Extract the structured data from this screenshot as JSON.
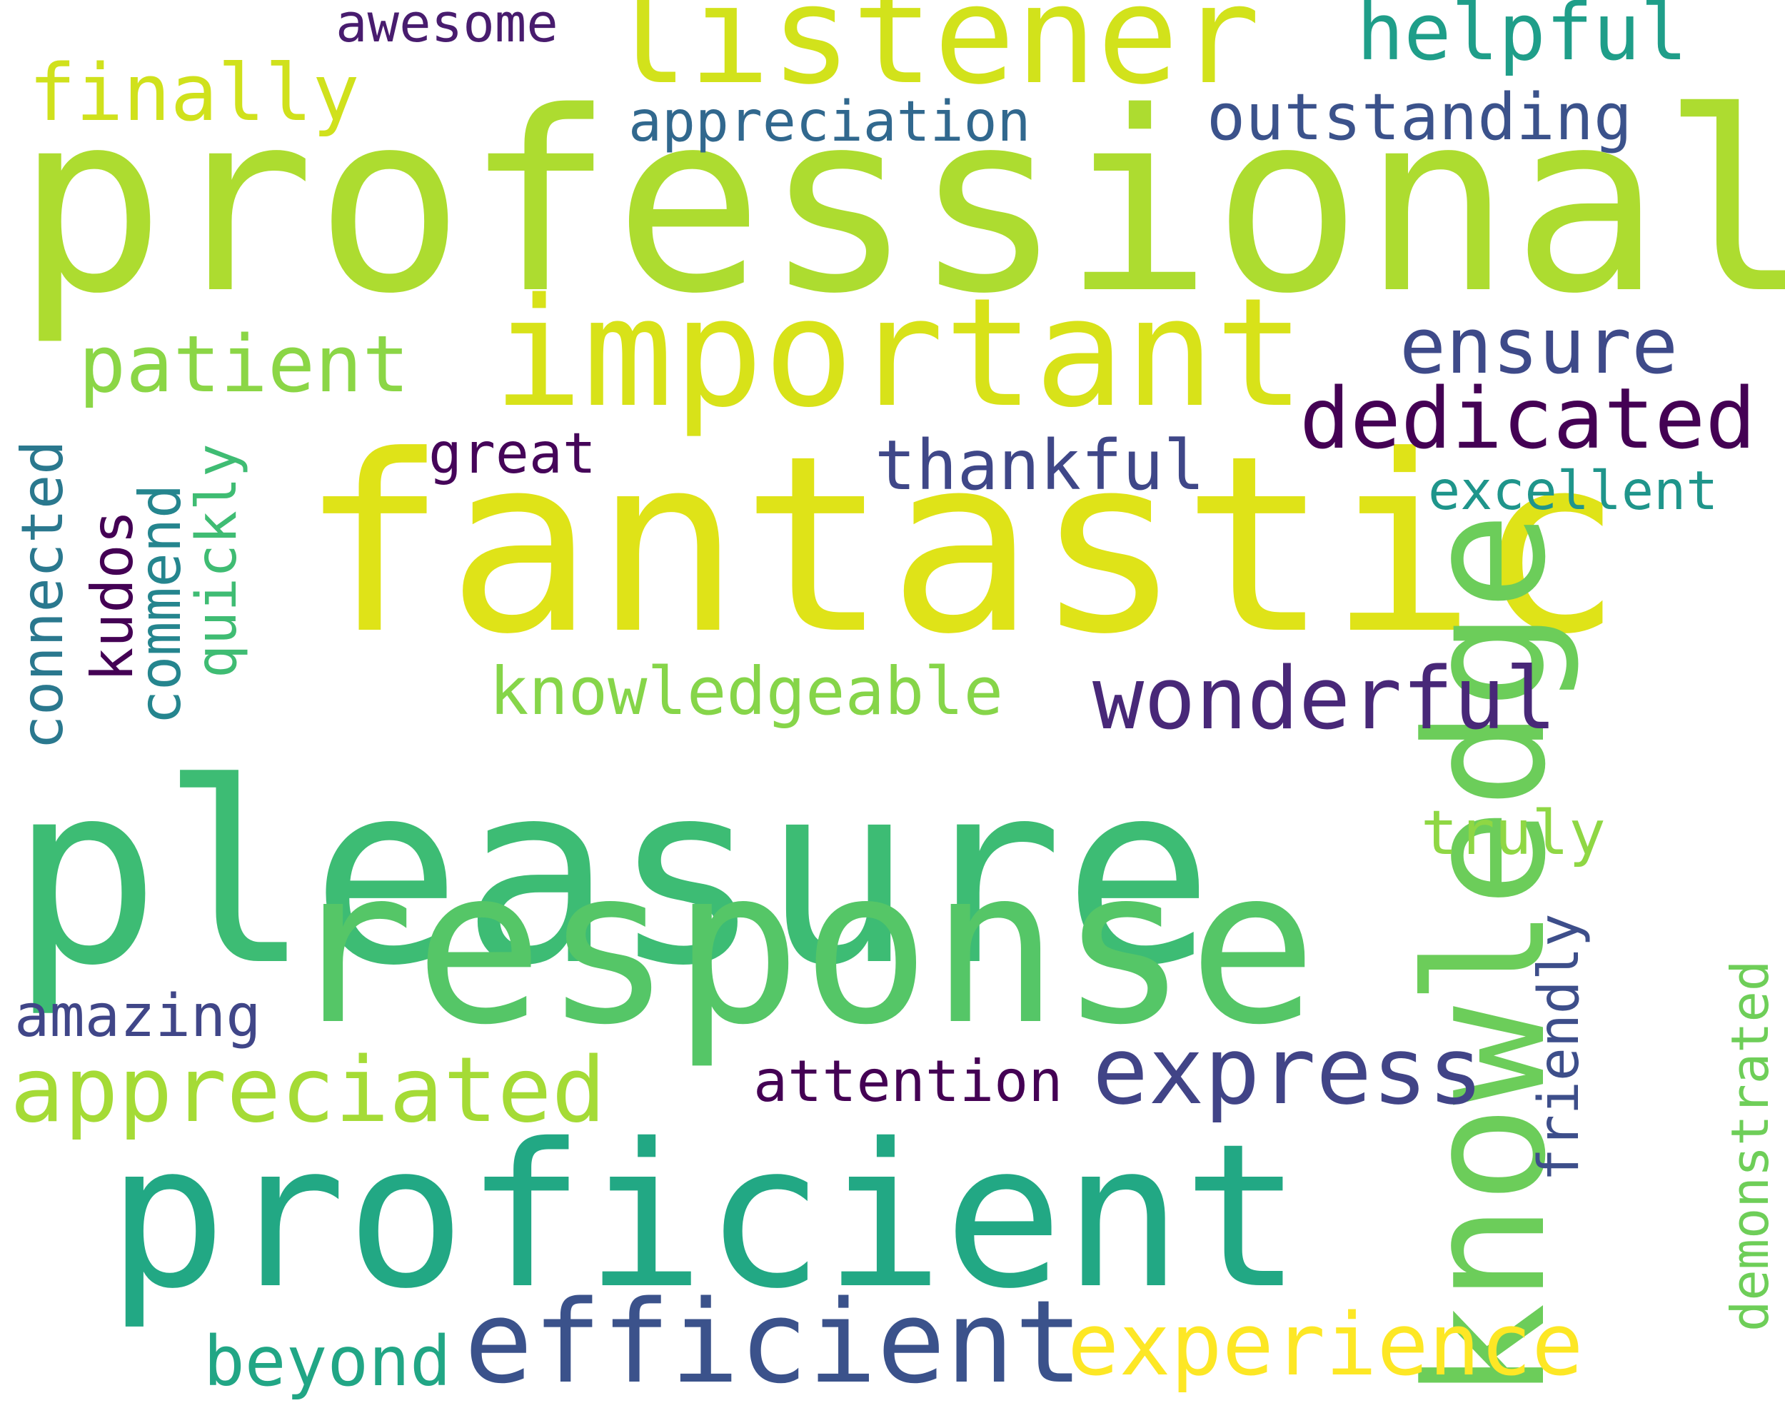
{
  "words": [
    {
      "text": "professional",
      "color": "#addc30",
      "vertical": false
    },
    {
      "text": "fantastic",
      "color": "#dfe318",
      "vertical": false
    },
    {
      "text": "pleasure",
      "color": "#3dbc74",
      "vertical": false
    },
    {
      "text": "response",
      "color": "#55c667",
      "vertical": false
    },
    {
      "text": "proficient",
      "color": "#22a884",
      "vertical": false
    },
    {
      "text": "knowledge",
      "color": "#6ccd5a",
      "vertical": true
    },
    {
      "text": "important",
      "color": "#d8e219",
      "vertical": false
    },
    {
      "text": "listener",
      "color": "#d2e21b",
      "vertical": false
    },
    {
      "text": "efficient",
      "color": "#3b528b",
      "vertical": false
    },
    {
      "text": "express",
      "color": "#414487",
      "vertical": false
    },
    {
      "text": "experience",
      "color": "#fde725",
      "vertical": false
    },
    {
      "text": "appreciated",
      "color": "#a5db36",
      "vertical": false
    },
    {
      "text": "wonderful",
      "color": "#482878",
      "vertical": false
    },
    {
      "text": "dedicated",
      "color": "#440154",
      "vertical": false
    },
    {
      "text": "ensure",
      "color": "#3e4a89",
      "vertical": false
    },
    {
      "text": "helpful",
      "color": "#1f9e89",
      "vertical": false
    },
    {
      "text": "finally",
      "color": "#d0e11c",
      "vertical": false
    },
    {
      "text": "patient",
      "color": "#8bd646",
      "vertical": false
    },
    {
      "text": "knowledgeable",
      "color": "#86d549",
      "vertical": false
    },
    {
      "text": "thankful",
      "color": "#3f4788",
      "vertical": false
    },
    {
      "text": "outstanding",
      "color": "#3b528b",
      "vertical": false
    },
    {
      "text": "appreciation",
      "color": "#31688e",
      "vertical": false
    },
    {
      "text": "excellent",
      "color": "#1f958b",
      "vertical": false
    },
    {
      "text": "beyond",
      "color": "#21a685",
      "vertical": false
    },
    {
      "text": "attention",
      "color": "#440154",
      "vertical": false
    },
    {
      "text": "amazing",
      "color": "#404688",
      "vertical": false
    },
    {
      "text": "truly",
      "color": "#8fd744",
      "vertical": false
    },
    {
      "text": "awesome",
      "color": "#481c6e",
      "vertical": false
    },
    {
      "text": "great",
      "color": "#450559",
      "vertical": false
    },
    {
      "text": "connected",
      "color": "#2a788e",
      "vertical": true
    },
    {
      "text": "kudos",
      "color": "#440154",
      "vertical": true
    },
    {
      "text": "commend",
      "color": "#25858e",
      "vertical": true
    },
    {
      "text": "quickly",
      "color": "#3fbc73",
      "vertical": true
    },
    {
      "text": "friendly",
      "color": "#3d4e8a",
      "vertical": true
    },
    {
      "text": "demonstrated",
      "color": "#6ece58",
      "vertical": true
    }
  ]
}
